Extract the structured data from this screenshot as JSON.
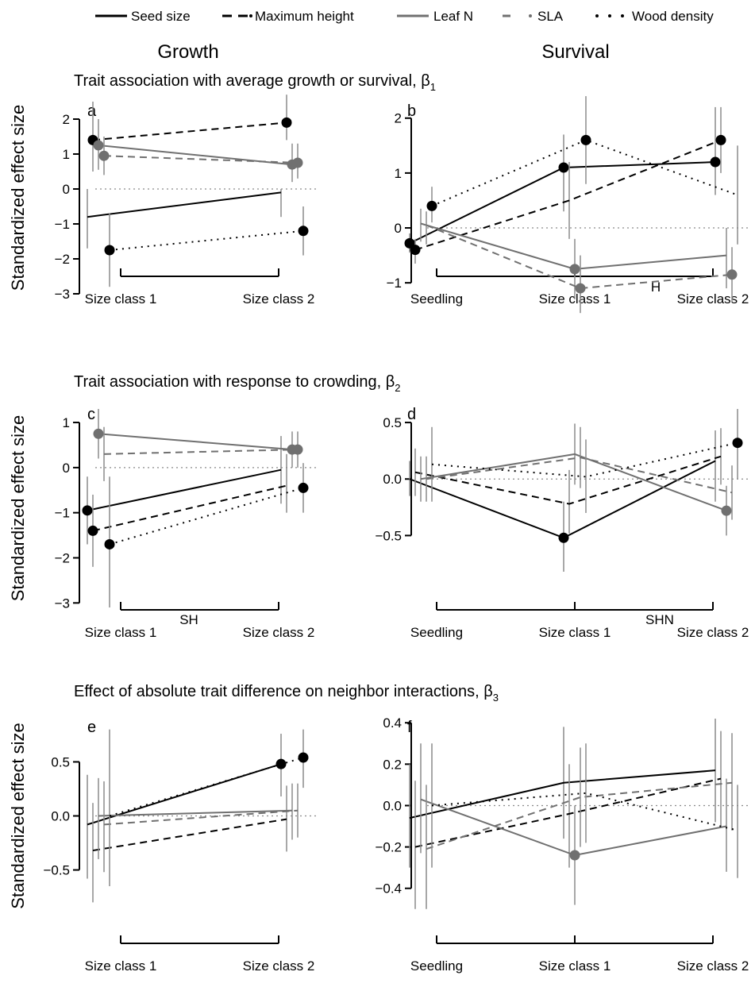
{
  "legend": {
    "items": [
      {
        "label": "Seed size",
        "color": "#000000",
        "style": "solid"
      },
      {
        "label": "Maximum height",
        "color": "#000000",
        "style": "dashed"
      },
      {
        "label": "Leaf N",
        "color": "#707070",
        "style": "solid"
      },
      {
        "label": "SLA",
        "color": "#707070",
        "style": "dashed"
      },
      {
        "label": "Wood density",
        "color": "#000000",
        "style": "dotted"
      }
    ]
  },
  "columns": {
    "growth": "Growth",
    "survival": "Survival"
  },
  "rows": [
    {
      "title": "Trait association with average growth or survival, β",
      "subscript": "1"
    },
    {
      "title": "Trait association with response to crowding, β",
      "subscript": "2"
    },
    {
      "title": "Effect of absolute trait difference on neighbor interactions, β",
      "subscript": "3"
    }
  ],
  "ylabel": "Standardized effect size",
  "chart_data": [
    {
      "type": "line",
      "panel": "a",
      "annotation": "",
      "categories": [
        "Size class 1",
        "Size class 2"
      ],
      "yticks": [
        -3,
        -2,
        -1,
        0,
        1,
        2
      ],
      "ytick_labels": [
        "−3",
        "−2",
        "−1",
        "0",
        "1",
        "2"
      ],
      "ylim": [
        -3,
        2.5
      ],
      "grid": false,
      "ylabel": "Standardized effect size",
      "series": [
        {
          "name": "Seed size",
          "values": [
            -0.8,
            -0.1
          ],
          "lower": [
            -1.7,
            -0.8
          ],
          "upper": [
            0.0,
            0.0
          ],
          "highlight": [
            false,
            false
          ]
        },
        {
          "name": "Maximum height",
          "values": [
            1.4,
            1.9
          ],
          "lower": [
            0.5,
            1.4
          ],
          "upper": [
            2.5,
            2.7
          ],
          "highlight": [
            true,
            true
          ]
        },
        {
          "name": "Leaf N",
          "values": [
            1.25,
            0.7
          ],
          "lower": [
            0.55,
            0.2
          ],
          "upper": [
            2.0,
            1.3
          ],
          "highlight": [
            true,
            true
          ]
        },
        {
          "name": "SLA",
          "values": [
            0.95,
            0.75
          ],
          "lower": [
            0.4,
            0.3
          ],
          "upper": [
            1.5,
            1.3
          ],
          "highlight": [
            true,
            true
          ]
        },
        {
          "name": "Wood density",
          "values": [
            -1.75,
            -1.2
          ],
          "lower": [
            -2.8,
            -1.9
          ],
          "upper": [
            -0.7,
            -0.5
          ],
          "highlight": [
            true,
            true
          ]
        }
      ]
    },
    {
      "type": "line",
      "panel": "b",
      "annotation": "H",
      "categories": [
        "Seedling",
        "Size class 1",
        "Size class 2"
      ],
      "yticks": [
        -1,
        0,
        1,
        2
      ],
      "ytick_labels": [
        "−1",
        "0",
        "1",
        "2"
      ],
      "ylim": [
        -1.2,
        2.3
      ],
      "grid": false,
      "ylabel": "",
      "series": [
        {
          "name": "Seed size",
          "values": [
            -0.28,
            1.1,
            1.2
          ],
          "lower": [
            -0.45,
            0.3,
            0.6
          ],
          "upper": [
            -0.1,
            1.7,
            2.2
          ],
          "highlight": [
            true,
            true,
            true
          ]
        },
        {
          "name": "Maximum height",
          "values": [
            -0.4,
            0.5,
            1.6
          ],
          "lower": [
            -0.65,
            -0.2,
            1.0
          ],
          "upper": [
            -0.2,
            1.2,
            2.2
          ],
          "highlight": [
            true,
            false,
            true
          ]
        },
        {
          "name": "Leaf N",
          "values": [
            0.08,
            -0.75,
            -0.5
          ],
          "lower": [
            -0.25,
            -1.3,
            -1.1
          ],
          "upper": [
            0.35,
            -0.2,
            0.0
          ],
          "highlight": [
            false,
            true,
            false
          ]
        },
        {
          "name": "SLA",
          "values": [
            0.05,
            -1.1,
            -0.85
          ],
          "lower": [
            -0.3,
            -1.55,
            -1.35
          ],
          "upper": [
            0.3,
            -0.5,
            -0.35
          ],
          "highlight": [
            false,
            true,
            true
          ]
        },
        {
          "name": "Wood density",
          "values": [
            0.4,
            1.6,
            0.6
          ],
          "lower": [
            0.1,
            0.8,
            -0.3
          ],
          "upper": [
            0.75,
            2.4,
            1.5
          ],
          "highlight": [
            true,
            true,
            false
          ]
        }
      ]
    },
    {
      "type": "line",
      "panel": "c",
      "annotation": "SH",
      "categories": [
        "Size class 1",
        "Size class 2"
      ],
      "yticks": [
        -3,
        -2,
        -1,
        0,
        1
      ],
      "ytick_labels": [
        "−3",
        "−2",
        "−1",
        "0",
        "1"
      ],
      "ylim": [
        -3.1,
        1.3
      ],
      "grid": false,
      "ylabel": "Standardized effect size",
      "series": [
        {
          "name": "Seed size",
          "values": [
            -0.95,
            -0.05
          ],
          "lower": [
            -1.7,
            -0.8
          ],
          "upper": [
            -0.2,
            0.7
          ],
          "highlight": [
            true,
            false
          ]
        },
        {
          "name": "Maximum height",
          "values": [
            -1.4,
            -0.4
          ],
          "lower": [
            -2.2,
            -1.0
          ],
          "upper": [
            -0.6,
            0.3
          ],
          "highlight": [
            true,
            false
          ]
        },
        {
          "name": "Leaf N",
          "values": [
            0.75,
            0.4
          ],
          "lower": [
            0.2,
            0.0
          ],
          "upper": [
            1.3,
            0.8
          ],
          "highlight": [
            true,
            true
          ]
        },
        {
          "name": "SLA",
          "values": [
            0.3,
            0.4
          ],
          "lower": [
            -0.3,
            0.0
          ],
          "upper": [
            0.9,
            0.8
          ],
          "highlight": [
            false,
            true
          ]
        },
        {
          "name": "Wood density",
          "values": [
            -1.7,
            -0.45
          ],
          "lower": [
            -3.1,
            -1.0
          ],
          "upper": [
            -0.2,
            0.1
          ],
          "highlight": [
            true,
            true
          ]
        }
      ]
    },
    {
      "type": "line",
      "panel": "d",
      "annotation": "SHN",
      "categories": [
        "Seedling",
        "Size class 1",
        "Size class 2"
      ],
      "yticks": [
        -0.5,
        0,
        0.5
      ],
      "ytick_labels": [
        "−0.5",
        "0.0",
        "0.5"
      ],
      "ylim": [
        -0.75,
        0.62
      ],
      "grid": false,
      "ylabel": "",
      "series": [
        {
          "name": "Seed size",
          "values": [
            0.0,
            -0.52,
            0.16
          ],
          "lower": [
            -0.15,
            -0.82,
            -0.2
          ],
          "upper": [
            0.16,
            -0.2,
            0.43
          ],
          "highlight": [
            false,
            true,
            false
          ]
        },
        {
          "name": "Maximum height",
          "values": [
            0.06,
            -0.22,
            0.2
          ],
          "lower": [
            -0.15,
            -0.48,
            -0.05
          ],
          "upper": [
            0.27,
            0.08,
            0.45
          ],
          "highlight": [
            false,
            false,
            false
          ]
        },
        {
          "name": "Leaf N",
          "values": [
            0.0,
            0.22,
            -0.28
          ],
          "lower": [
            -0.2,
            -0.05,
            -0.5
          ],
          "upper": [
            0.2,
            0.49,
            -0.06
          ],
          "highlight": [
            false,
            false,
            true
          ]
        },
        {
          "name": "SLA",
          "values": [
            0.0,
            0.19,
            -0.12
          ],
          "lower": [
            -0.2,
            -0.08,
            -0.36
          ],
          "upper": [
            0.2,
            0.46,
            0.12
          ],
          "highlight": [
            false,
            false,
            false
          ]
        },
        {
          "name": "Wood density",
          "values": [
            0.13,
            0.02,
            0.32
          ],
          "lower": [
            -0.2,
            -0.3,
            0.0
          ],
          "upper": [
            0.46,
            0.35,
            0.62
          ],
          "highlight": [
            false,
            false,
            true
          ]
        }
      ]
    },
    {
      "type": "line",
      "panel": "e",
      "annotation": "",
      "categories": [
        "Size class 1",
        "Size class 2"
      ],
      "yticks": [
        -0.5,
        0,
        0.5
      ],
      "ytick_labels": [
        "−0.5",
        "0.0",
        "0.5"
      ],
      "ylim": [
        -0.9,
        0.9
      ],
      "grid": false,
      "ylabel": "Standardized effect size",
      "series": [
        {
          "name": "Seed size",
          "values": [
            -0.08,
            0.48
          ],
          "lower": [
            -0.58,
            0.18
          ],
          "upper": [
            0.38,
            0.76
          ],
          "highlight": [
            false,
            true
          ]
        },
        {
          "name": "Maximum height",
          "values": [
            -0.32,
            -0.03
          ],
          "lower": [
            -0.8,
            -0.33
          ],
          "upper": [
            0.12,
            0.28
          ],
          "highlight": [
            false,
            false
          ]
        },
        {
          "name": "Leaf N",
          "values": [
            0.0,
            0.05
          ],
          "lower": [
            -0.4,
            -0.22
          ],
          "upper": [
            0.35,
            0.3
          ],
          "highlight": [
            false,
            false
          ]
        },
        {
          "name": "SLA",
          "values": [
            -0.08,
            0.05
          ],
          "lower": [
            -0.52,
            -0.2
          ],
          "upper": [
            0.32,
            0.3
          ],
          "highlight": [
            false,
            false
          ]
        },
        {
          "name": "Wood density",
          "values": [
            0.0,
            0.54
          ],
          "lower": [
            -0.65,
            0.26
          ],
          "upper": [
            0.8,
            0.8
          ],
          "highlight": [
            false,
            true
          ]
        }
      ]
    },
    {
      "type": "line",
      "panel": "f",
      "annotation": "",
      "categories": [
        "Seedling",
        "Size class 1",
        "Size class 2"
      ],
      "yticks": [
        -0.4,
        -0.2,
        0,
        0.2,
        0.4
      ],
      "ytick_labels": [
        "−0.4",
        "−0.2",
        "0.0",
        "0.2",
        "0.4"
      ],
      "ylim": [
        -0.52,
        0.42
      ],
      "grid": false,
      "ylabel": "",
      "series": [
        {
          "name": "Seed size",
          "values": [
            -0.06,
            0.11,
            0.17
          ],
          "lower": [
            -0.3,
            -0.16,
            -0.08
          ],
          "upper": [
            0.2,
            0.38,
            0.42
          ],
          "highlight": [
            false,
            false,
            false
          ]
        },
        {
          "name": "Maximum height",
          "values": [
            -0.2,
            -0.04,
            0.13
          ],
          "lower": [
            -0.5,
            -0.3,
            -0.1
          ],
          "upper": [
            0.12,
            0.2,
            0.36
          ],
          "highlight": [
            false,
            false,
            false
          ]
        },
        {
          "name": "Leaf N",
          "values": [
            0.03,
            -0.24,
            -0.1
          ],
          "lower": [
            -0.23,
            -0.48,
            -0.32
          ],
          "upper": [
            0.3,
            0.0,
            0.13
          ],
          "highlight": [
            false,
            true,
            false
          ]
        },
        {
          "name": "SLA",
          "values": [
            -0.21,
            0.04,
            0.11
          ],
          "lower": [
            -0.5,
            -0.2,
            -0.12
          ],
          "upper": [
            0.1,
            0.28,
            0.35
          ],
          "highlight": [
            false,
            false,
            false
          ]
        },
        {
          "name": "Wood density",
          "values": [
            0.0,
            0.06,
            -0.12
          ],
          "lower": [
            -0.3,
            -0.18,
            -0.35
          ],
          "upper": [
            0.3,
            0.3,
            0.1
          ],
          "highlight": [
            false,
            false,
            false
          ]
        }
      ]
    }
  ]
}
